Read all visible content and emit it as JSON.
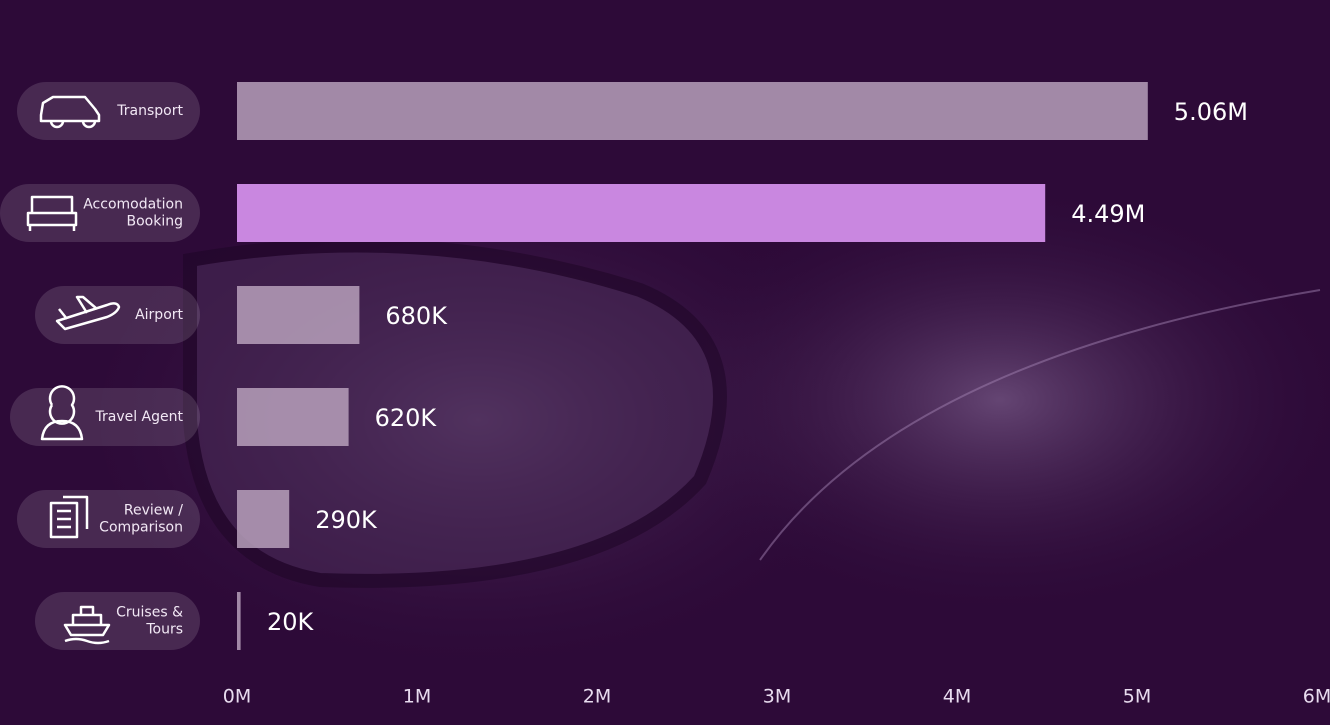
{
  "chart_data": {
    "type": "bar",
    "orientation": "horizontal",
    "categories": [
      [
        "Transport"
      ],
      [
        "Accomodation",
        "Booking"
      ],
      [
        "Airport"
      ],
      [
        "Travel Agent"
      ],
      [
        "Review /",
        "Comparison"
      ],
      [
        "Cruises &",
        "Tours"
      ]
    ],
    "values": [
      5060000,
      4490000,
      680000,
      620000,
      290000,
      20000
    ],
    "value_labels": [
      "5.06M",
      "4.49M",
      "680K",
      "620K",
      "290K",
      "20K"
    ],
    "colors": [
      "#b7a0bb",
      "#c987e0",
      "#b7a0bb",
      "#b7a0bb",
      "#b7a0bb",
      "#b7a0bb"
    ],
    "xlim": [
      0,
      6000000
    ],
    "xticks": [
      {
        "value": 0,
        "label": "0M"
      },
      {
        "value": 1000000,
        "label": "1M"
      },
      {
        "value": 2000000,
        "label": "2M"
      },
      {
        "value": 3000000,
        "label": "3M"
      },
      {
        "value": 4000000,
        "label": "4M"
      },
      {
        "value": 5000000,
        "label": "5M"
      },
      {
        "value": 6000000,
        "label": "6M"
      }
    ],
    "grid": false
  }
}
